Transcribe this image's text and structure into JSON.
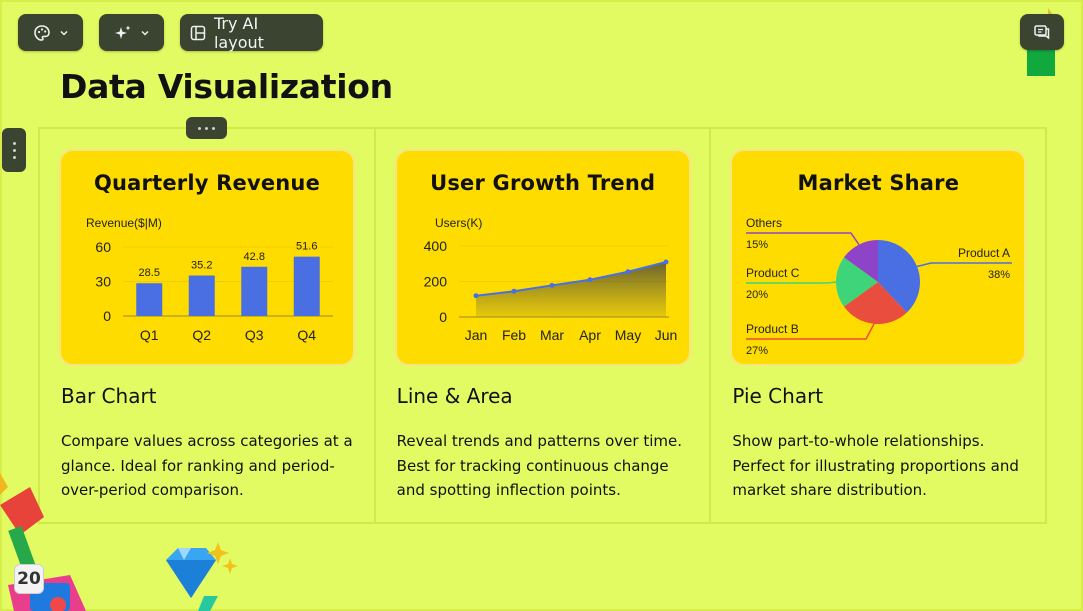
{
  "toolbar": {
    "theme_icon": "palette-icon",
    "ai_icon": "sparkle-icon",
    "layout_label": "Try AI layout",
    "chat_icon": "chat-icon"
  },
  "page": {
    "title": "Data Visualization",
    "page_number": "20"
  },
  "columns": [
    {
      "card_title": "Quarterly Revenue",
      "heading": "Bar Chart",
      "description": "Compare values across categories at a glance. Ideal for ranking and period-over-period comparison."
    },
    {
      "card_title": "User Growth Trend",
      "heading": "Line & Area",
      "description": "Reveal trends and patterns over time. Best for tracking continuous change and spotting inflection points."
    },
    {
      "card_title": "Market Share",
      "heading": "Pie Chart",
      "description": "Show part-to-whole relationships. Perfect for illustrating proportions and market share distribution."
    }
  ],
  "chart_data": [
    {
      "type": "bar",
      "title": "Quarterly Revenue",
      "ylabel": "Revenue($|M)",
      "categories": [
        "Q1",
        "Q2",
        "Q3",
        "Q4"
      ],
      "values": [
        28.5,
        35.2,
        42.8,
        51.6
      ],
      "value_labels": [
        "28.5",
        "35.2",
        "42.8",
        "51.6"
      ],
      "yticks": [
        0,
        30,
        60
      ],
      "ylim": [
        0,
        60
      ],
      "color": "#4a6fe3",
      "grid": true
    },
    {
      "type": "area",
      "title": "User Growth Trend",
      "ylabel": "Users(K)",
      "categories": [
        "Jan",
        "Feb",
        "Mar",
        "Apr",
        "May",
        "Jun"
      ],
      "values": [
        120,
        145,
        178,
        210,
        255,
        310
      ],
      "yticks": [
        0,
        200,
        400
      ],
      "ylim": [
        0,
        400
      ],
      "color": "#4a6fe3",
      "grid": true
    },
    {
      "type": "pie",
      "title": "Market Share",
      "slices": [
        {
          "name": "Product A",
          "value": 38,
          "label": "38%",
          "color": "#4a6fe3"
        },
        {
          "name": "Product B",
          "value": 27,
          "label": "27%",
          "color": "#e84d3d"
        },
        {
          "name": "Product C",
          "value": 20,
          "label": "20%",
          "color": "#3ed47a"
        },
        {
          "name": "Others",
          "value": 15,
          "label": "15%",
          "color": "#8e44c8"
        }
      ]
    }
  ]
}
